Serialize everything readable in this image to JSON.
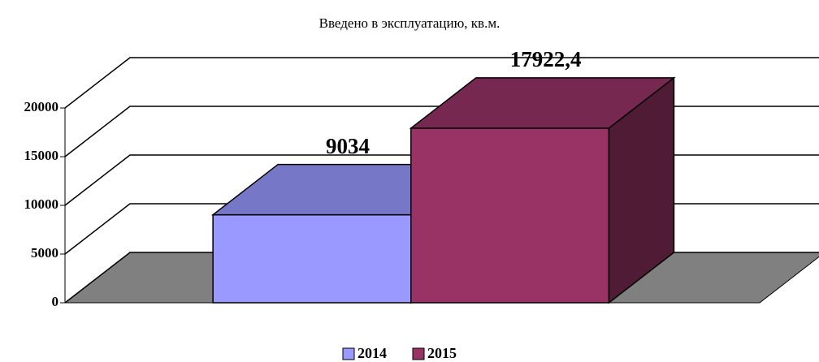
{
  "chart_data": {
    "type": "bar3d",
    "title": "Введено в эксплуатацию, кв.м.",
    "categories": [
      null
    ],
    "series": [
      {
        "name": "2014",
        "color": "#9999ff",
        "values": [
          9034
        ]
      },
      {
        "name": "2015",
        "color": "#993366",
        "values": [
          17922.4
        ],
        "value_labels": [
          "17922,4"
        ]
      }
    ],
    "ylim": [
      0,
      20000
    ],
    "yticks": [
      0,
      5000,
      10000,
      15000,
      20000
    ],
    "grid": true,
    "legend": "bottom"
  }
}
